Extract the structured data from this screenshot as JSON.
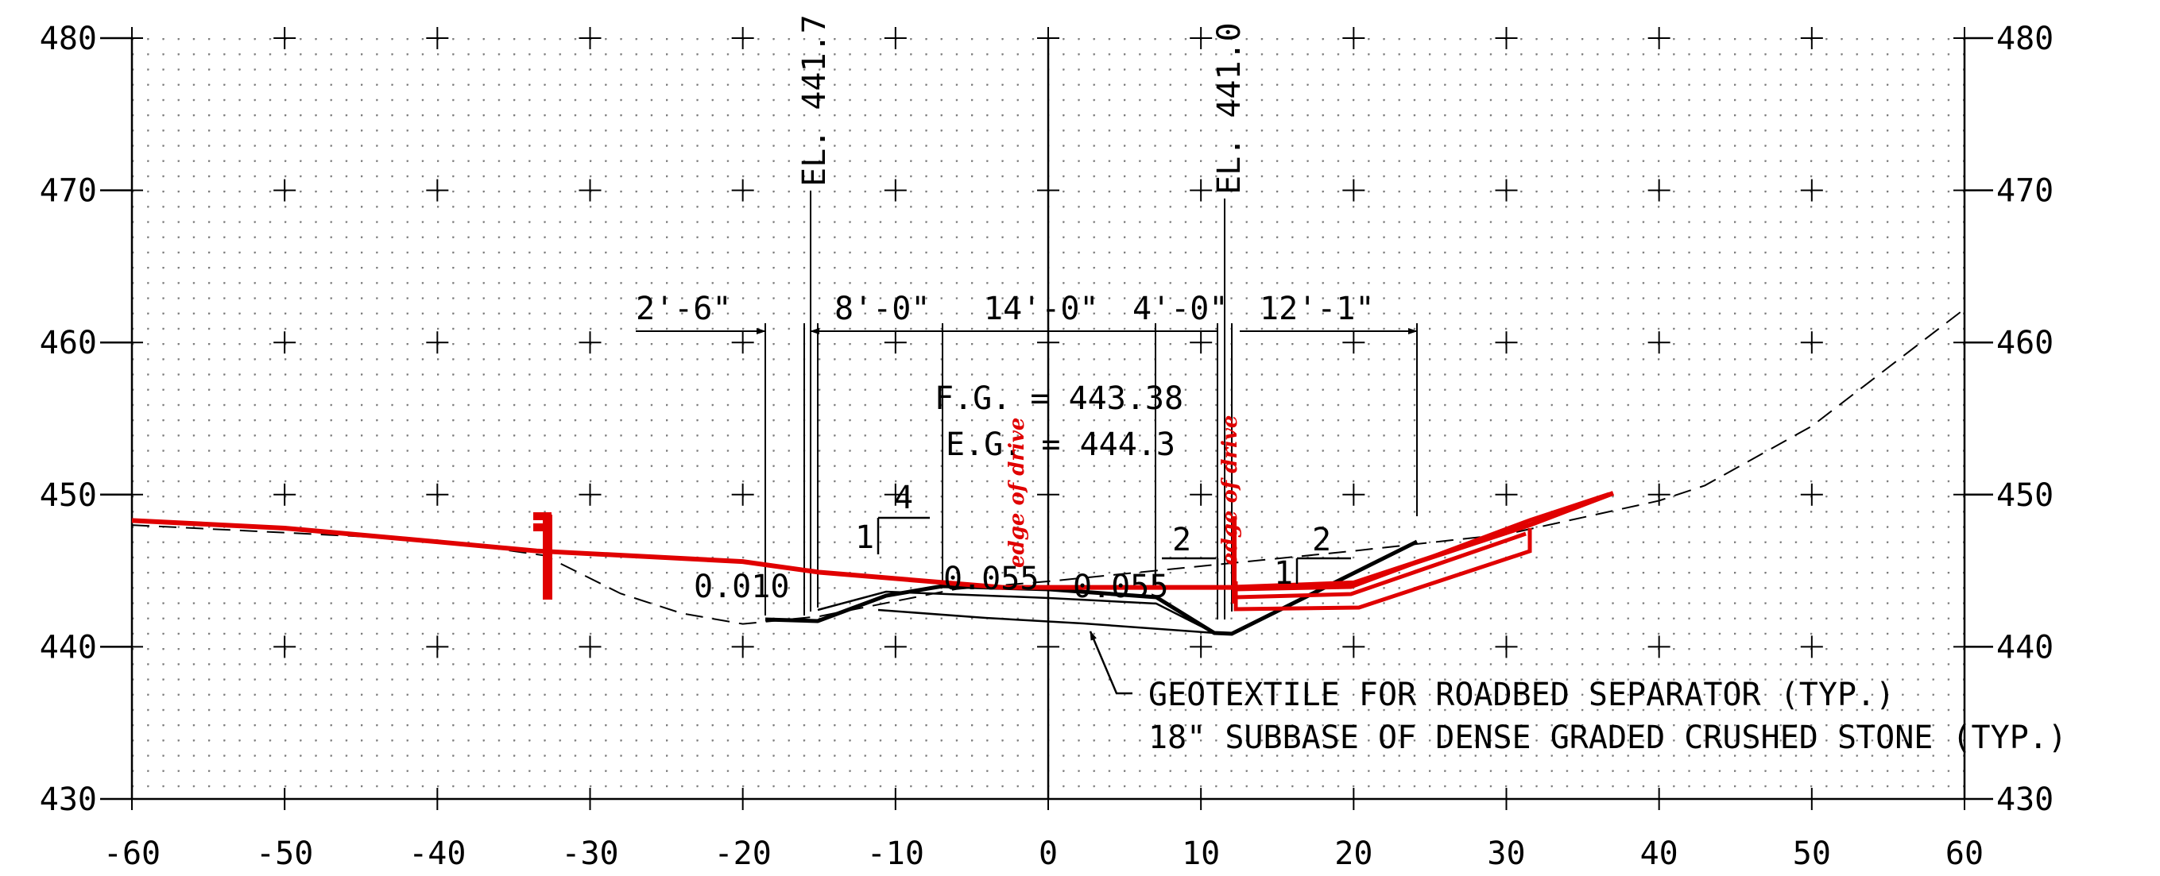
{
  "chart_data": {
    "type": "line",
    "x_ticks": [
      -60,
      -50,
      -40,
      -30,
      -20,
      -10,
      0,
      10,
      20,
      30,
      40,
      50,
      60
    ],
    "y_ticks": [
      430,
      440,
      450,
      460,
      470,
      480
    ],
    "xlim": [
      -60,
      60
    ],
    "ylim": [
      430,
      480
    ],
    "grid": true,
    "series": [
      {
        "color": "#e00000",
        "style": "solid",
        "points": [
          [
            -60,
            448.3
          ],
          [
            -50,
            447.8
          ],
          [
            -40,
            446.9
          ],
          [
            -33.5,
            446.3
          ],
          [
            -20,
            445.6
          ],
          [
            -15,
            444.9
          ],
          [
            -3,
            443.9
          ],
          [
            12,
            443.9
          ],
          [
            20,
            444.2
          ],
          [
            31.5,
            448
          ],
          [
            37,
            450.1
          ]
        ]
      },
      {
        "color": "#000000",
        "style": "dashed",
        "points": [
          [
            -60,
            448.0
          ],
          [
            -50,
            447.5
          ],
          [
            -40,
            447
          ],
          [
            -33,
            446
          ],
          [
            -28,
            443.5
          ],
          [
            -24,
            442.2
          ],
          [
            -20,
            441.5
          ],
          [
            -15,
            442
          ],
          [
            -6,
            443.8
          ],
          [
            0,
            444.3
          ],
          [
            10,
            445.3
          ],
          [
            20,
            446.3
          ],
          [
            30,
            447.4
          ],
          [
            40,
            449.6
          ],
          [
            43,
            450.6
          ],
          [
            50,
            454.5
          ],
          [
            60,
            462.2
          ]
        ]
      }
    ]
  },
  "labels": {
    "elev_left": "EL. 441.7",
    "elev_right": "EL. 441.0",
    "fg": "F.G. = 443.38",
    "eg": "E.G. = 444.3",
    "dim_1": "2'-6\"",
    "dim_2": "8'-0\"",
    "dim_3": "14'-0\"",
    "dim_4": "4'-0\"",
    "dim_5": "12'-1\"",
    "slope_left": "0.010",
    "slope_mid_left": "0.055",
    "slope_mid_right": "0.055",
    "ratio_4": "4",
    "ratio_1a": "1",
    "ratio_2a": "2",
    "ratio_2b": "2",
    "ratio_1b": "1",
    "note_geotextile": "GEOTEXTILE FOR ROADBED SEPARATOR (TYP.)",
    "note_subbase": "18\" SUBBASE OF DENSE GRADED CRUSHED STONE (TYP.)",
    "edge_left": "edge of drive",
    "edge_right": "edge of drive"
  }
}
